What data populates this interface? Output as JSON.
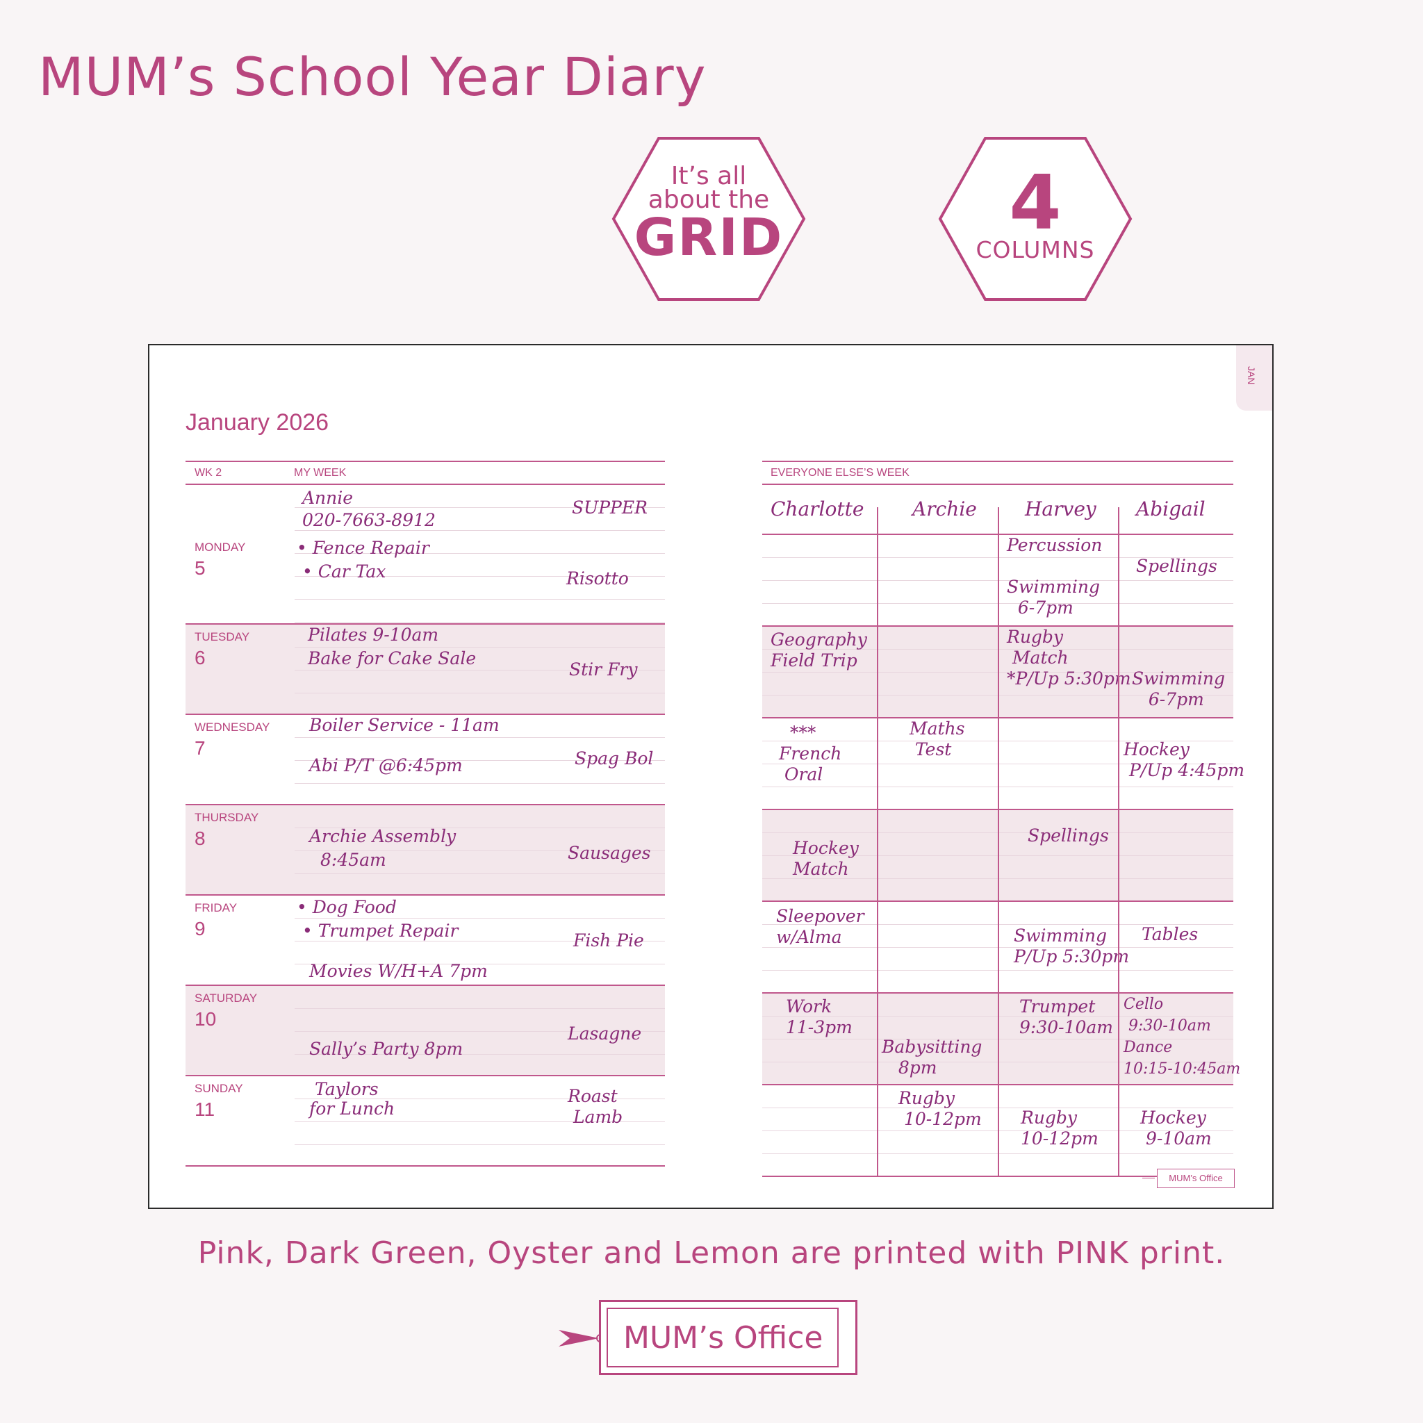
{
  "page": {
    "title": "MUM’s School Year Diary",
    "badge1": {
      "line1": "It’s all",
      "line2": "about the",
      "line3": "GRID"
    },
    "badge2": {
      "number": "4",
      "word": "COLUMNS"
    },
    "footer_note": "Pink, Dark Green, Oyster and Lemon are printed with PINK print.",
    "brand": "MUM’s Office",
    "colors": {
      "brand_pink": "#b8457e",
      "ink": "#8a2c78",
      "shade": "#f3e7eb"
    }
  },
  "diary": {
    "month_tab": "JAN",
    "month_title": "January 2026",
    "left_header": {
      "week": "WK  2",
      "label": "MY WEEK"
    },
    "right_header": {
      "label": "EVERYONE ELSE’S WEEK"
    },
    "columns": [
      "Charlotte",
      "Archie",
      "Harvey",
      "Abigail"
    ],
    "days": [
      {
        "name": "MONDAY",
        "num": "5",
        "entries": [
          "Annie",
          "020-7663-8912",
          "• Fence Repair",
          "• Car Tax"
        ],
        "supper_label": "SUPPER",
        "supper": "Risotto"
      },
      {
        "name": "TUESDAY",
        "num": "6",
        "entries": [
          "Pilates 9-10am",
          "Bake for Cake Sale"
        ],
        "supper": "Stir Fry"
      },
      {
        "name": "WEDNESDAY",
        "num": "7",
        "entries": [
          "Boiler Service - 11am",
          "Abi P/T @6:45pm"
        ],
        "supper": "Spag Bol"
      },
      {
        "name": "THURSDAY",
        "num": "8",
        "entries": [
          "Archie Assembly",
          "8:45am"
        ],
        "supper": "Sausages"
      },
      {
        "name": "FRIDAY",
        "num": "9",
        "entries": [
          "• Dog Food",
          "• Trumpet Repair",
          "Movies W/H+A 7pm"
        ],
        "supper": "Fish Pie"
      },
      {
        "name": "SATURDAY",
        "num": "10",
        "entries": [
          "Sally’s Party 8pm"
        ],
        "supper": "Lasagne"
      },
      {
        "name": "SUNDAY",
        "num": "11",
        "entries": [
          "Taylors",
          "for Lunch"
        ],
        "supper": "Roast\n Lamb"
      }
    ],
    "family": {
      "mon": {
        "harvey_a": "Percussion",
        "harvey_b": "Swimming\n  6-7pm",
        "abigail": "Spellings"
      },
      "tue": {
        "charlotte": "Geography\nField Trip",
        "harvey": "Rugby\n Match\n*P/Up 5:30pm",
        "abigail": "Swimming\n   6-7pm"
      },
      "wed": {
        "charlotte": "  ***\nFrench\n Oral",
        "archie": "Maths\n Test",
        "abigail": "Hockey\n P/Up 4:45pm"
      },
      "thu": {
        "charlotte": "Hockey\nMatch",
        "harvey": "Spellings"
      },
      "fri": {
        "charlotte": "Sleepover\nw/Alma",
        "harvey": "Swimming\nP/Up 5:30pm",
        "abigail": "Tables"
      },
      "sat": {
        "charlotte": "Work\n11-3pm",
        "archie": "Babysitting\n   8pm",
        "harvey": "Trumpet\n9:30-10am",
        "abigail": "Cello\n 9:30-10am\nDance\n10:15-10:45am"
      },
      "sun": {
        "archie": "Rugby\n 10-12pm",
        "harvey": "Rugby\n10-12pm",
        "abigail": "Hockey\n 9-10am"
      }
    },
    "small_tag": "MUM’s Office"
  }
}
